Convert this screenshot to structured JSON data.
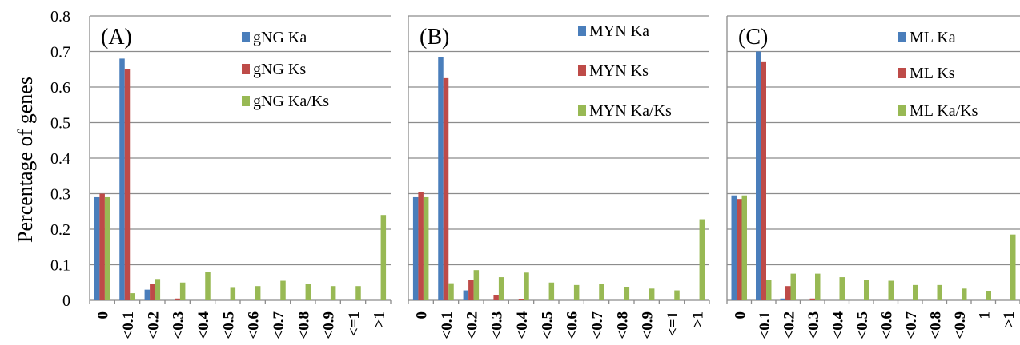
{
  "figure": {
    "ylabel": "Percentage of genes",
    "yticks": [
      "0",
      "0.1",
      "0.2",
      "0.3",
      "0.4",
      "0.5",
      "0.6",
      "0.7",
      "0.8"
    ],
    "colors": {
      "ka": "#4a7ebb",
      "ks": "#be4b48",
      "ratio": "#98b954"
    }
  },
  "chart_data": [
    {
      "type": "bar",
      "panel_label": "(A)",
      "ylim": [
        0,
        0.8
      ],
      "categories": [
        "0",
        "<0.1",
        "<0.2",
        "<0.3",
        "<0.4",
        "<0.5",
        "<0.6",
        "<0.7",
        "<0.8",
        "<0.9",
        "<=1",
        ">1"
      ],
      "series": [
        {
          "name": "gNG Ka",
          "values": [
            0.29,
            0.68,
            0.03,
            0.0,
            0.0,
            0.0,
            0.0,
            0.0,
            0.0,
            0.0,
            0.0,
            0.0
          ]
        },
        {
          "name": "gNG Ks",
          "values": [
            0.3,
            0.65,
            0.045,
            0.005,
            0.0,
            0.0,
            0.0,
            0.0,
            0.0,
            0.0,
            0.0,
            0.0
          ]
        },
        {
          "name": "gNG Ka/Ks",
          "values": [
            0.29,
            0.02,
            0.06,
            0.05,
            0.08,
            0.035,
            0.04,
            0.055,
            0.045,
            0.04,
            0.04,
            0.24
          ]
        }
      ],
      "grid": true,
      "legend": "top-right"
    },
    {
      "type": "bar",
      "panel_label": "(B)",
      "ylim": [
        0,
        0.8
      ],
      "categories": [
        "0",
        "<0.1",
        "<0.2",
        "<0.3",
        "<0.4",
        "<0.5",
        "<0.6",
        "<0.7",
        "<0.8",
        "<0.9",
        "<=1",
        ">1"
      ],
      "series": [
        {
          "name": "MYN Ka",
          "values": [
            0.29,
            0.685,
            0.028,
            0.0,
            0.0,
            0.0,
            0.0,
            0.0,
            0.0,
            0.0,
            0.0,
            0.0
          ]
        },
        {
          "name": "MYN Ks",
          "values": [
            0.305,
            0.625,
            0.058,
            0.015,
            0.004,
            0.0,
            0.0,
            0.0,
            0.0,
            0.0,
            0.0,
            0.0
          ]
        },
        {
          "name": "MYN Ka/Ks",
          "values": [
            0.29,
            0.048,
            0.085,
            0.065,
            0.078,
            0.05,
            0.043,
            0.045,
            0.038,
            0.033,
            0.028,
            0.228
          ]
        }
      ],
      "grid": true,
      "legend": "top-right"
    },
    {
      "type": "bar",
      "panel_label": "(C)",
      "ylim": [
        0,
        0.8
      ],
      "categories": [
        "0",
        "<0.1",
        "<0.2",
        "<0.3",
        "<0.4",
        "<0.5",
        "<0.6",
        "<0.7",
        "<0.8",
        "<0.9",
        "1",
        ">1"
      ],
      "series": [
        {
          "name": "ML Ka",
          "values": [
            0.295,
            0.7,
            0.005,
            0.0,
            0.0,
            0.0,
            0.0,
            0.0,
            0.0,
            0.0,
            0.0,
            0.0
          ]
        },
        {
          "name": "ML Ks",
          "values": [
            0.285,
            0.67,
            0.04,
            0.005,
            0.0,
            0.0,
            0.0,
            0.0,
            0.0,
            0.0,
            0.0,
            0.0
          ]
        },
        {
          "name": "ML Ka/Ks",
          "values": [
            0.295,
            0.058,
            0.075,
            0.075,
            0.065,
            0.058,
            0.055,
            0.043,
            0.043,
            0.033,
            0.025,
            0.185
          ]
        }
      ],
      "grid": true,
      "legend": "top-right"
    }
  ]
}
